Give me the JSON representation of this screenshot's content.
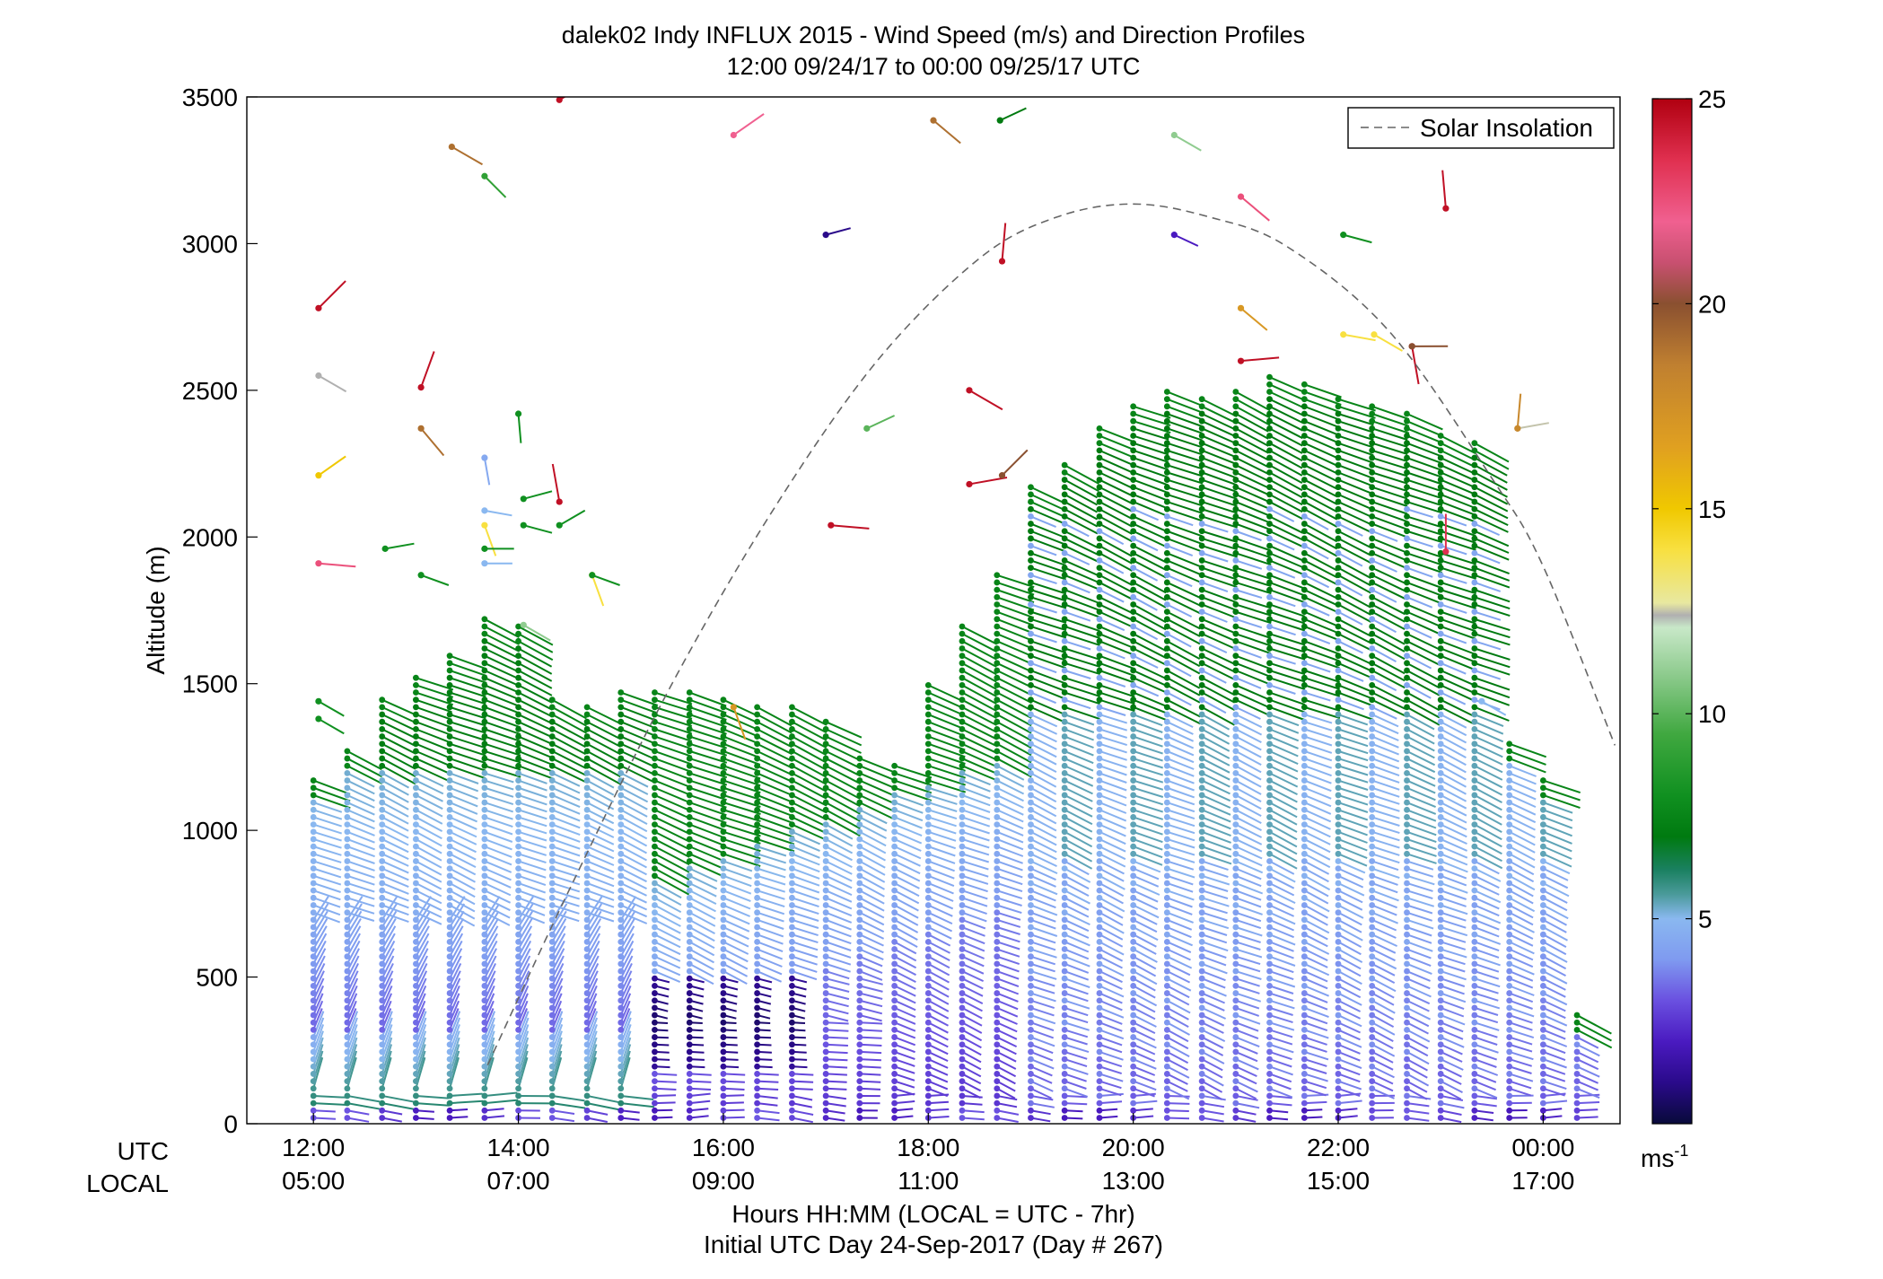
{
  "chart_data": {
    "type": "scatter",
    "title": "dalek02 Indy INFLUX 2015 - Wind Speed (m/s) and Direction Profiles",
    "subtitle": "12:00 09/24/17 to 00:00 09/25/17  UTC",
    "ylabel": "Altitude (m)",
    "xlabel": "Hours HH:MM  (LOCAL = UTC - 7hr)",
    "xlabel2": "Initial UTC Day 24-Sep-2017 (Day # 267)",
    "utc_label": "UTC",
    "local_label": "LOCAL",
    "xlim": [
      11.35,
      24.75
    ],
    "ylim": [
      0,
      3500
    ],
    "y_ticks": [
      "0",
      "500",
      "1000",
      "1500",
      "2000",
      "2500",
      "3000",
      "3500"
    ],
    "x_ticks_utc": [
      "12:00",
      "14:00",
      "16:00",
      "18:00",
      "20:00",
      "22:00",
      "00:00"
    ],
    "x_ticks_local": [
      "05:00",
      "07:00",
      "09:00",
      "11:00",
      "13:00",
      "15:00",
      "17:00"
    ],
    "x_tick_hours": [
      12,
      14,
      16,
      18,
      20,
      22,
      24
    ],
    "legend": {
      "position": "top-right",
      "entry": "Solar Insolation"
    },
    "colorbar": {
      "min": 0,
      "max": 25,
      "ticks": [
        "5",
        "10",
        "15",
        "20",
        "25"
      ],
      "unit": "ms",
      "unit_sup": "-1",
      "stops": [
        {
          "v": 0,
          "c": "#080a3a"
        },
        {
          "v": 1,
          "c": "#2a0a8a"
        },
        {
          "v": 2,
          "c": "#4a1ac0"
        },
        {
          "v": 3,
          "c": "#6a50e0"
        },
        {
          "v": 4,
          "c": "#7f9af0"
        },
        {
          "v": 5,
          "c": "#8ab8f0"
        },
        {
          "v": 5.6,
          "c": "#4a9a9a"
        },
        {
          "v": 6.2,
          "c": "#1a8060"
        },
        {
          "v": 7,
          "c": "#007a10"
        },
        {
          "v": 8,
          "c": "#109020"
        },
        {
          "v": 9.5,
          "c": "#40a840"
        },
        {
          "v": 11,
          "c": "#90cc90"
        },
        {
          "v": 12.1,
          "c": "#c8e8c8"
        },
        {
          "v": 12.4,
          "c": "#b0b0b0"
        },
        {
          "v": 12.7,
          "c": "#e8e8a0"
        },
        {
          "v": 14,
          "c": "#f8e040"
        },
        {
          "v": 15,
          "c": "#f0c800"
        },
        {
          "v": 16.5,
          "c": "#e0a020"
        },
        {
          "v": 18.5,
          "c": "#c08030"
        },
        {
          "v": 20,
          "c": "#8a5030"
        },
        {
          "v": 21,
          "c": "#c85070"
        },
        {
          "v": 22,
          "c": "#f06090"
        },
        {
          "v": 23.5,
          "c": "#e03050"
        },
        {
          "v": 25,
          "c": "#b00010"
        }
      ]
    },
    "solar_insolation": {
      "style": "dashed",
      "color": "#666666",
      "x": [
        13.7,
        14.5,
        15.5,
        16.5,
        17.5,
        18.5,
        19.25,
        20.0,
        20.75,
        21.5,
        22.5,
        23.5,
        24.0,
        24.7
      ],
      "y": [
        200,
        800,
        1500,
        2100,
        2600,
        2950,
        3090,
        3135,
        3090,
        2990,
        2700,
        2200,
        1900,
        1290
      ]
    },
    "profiles": {
      "times": [
        12.0,
        12.33,
        12.67,
        13.0,
        13.33,
        13.67,
        14.0,
        14.33,
        14.67,
        15.0,
        15.33,
        15.67,
        16.0,
        16.33,
        16.67,
        17.0,
        17.33,
        17.67,
        18.0,
        18.33,
        18.67,
        19.0,
        19.33,
        19.67,
        20.0,
        20.33,
        20.67,
        21.0,
        21.33,
        21.67,
        22.0,
        22.33,
        22.67,
        23.0,
        23.33,
        23.67,
        24.0,
        24.33
      ],
      "top_m": [
        1170,
        1270,
        1460,
        1520,
        1600,
        1720,
        1700,
        1450,
        1440,
        1480,
        1480,
        1480,
        1450,
        1440,
        1430,
        1380,
        1260,
        1240,
        1500,
        1700,
        1870,
        2170,
        2260,
        2370,
        2450,
        2500,
        2480,
        2500,
        2550,
        2520,
        2480,
        2450,
        2420,
        2350,
        2330,
        1300,
        1170,
        370
      ],
      "spacing_m": 25,
      "note_levels": "speed profile: ~5 m/s mid-levels, green aloft, purple near surface"
    },
    "upper_wind_barbs": [
      {
        "t": 12.05,
        "alt": 2780,
        "speed": 24.5,
        "dir": 225
      },
      {
        "t": 12.05,
        "alt": 2550,
        "speed": 12.4,
        "dir": 300
      },
      {
        "t": 12.05,
        "alt": 2210,
        "speed": 15,
        "dir": 235
      },
      {
        "t": 12.05,
        "alt": 1910,
        "speed": 22.5,
        "dir": 275
      },
      {
        "t": 12.05,
        "alt": 1440,
        "speed": 8,
        "dir": 300
      },
      {
        "t": 12.05,
        "alt": 1380,
        "speed": 8,
        "dir": 300
      },
      {
        "t": 12.7,
        "alt": 1960,
        "speed": 8,
        "dir": 260
      },
      {
        "t": 13.05,
        "alt": 2510,
        "speed": 24.5,
        "dir": 200
      },
      {
        "t": 13.05,
        "alt": 2370,
        "speed": 19,
        "dir": 320
      },
      {
        "t": 13.05,
        "alt": 1870,
        "speed": 8,
        "dir": 290
      },
      {
        "t": 13.35,
        "alt": 3330,
        "speed": 19,
        "dir": 300
      },
      {
        "t": 13.67,
        "alt": 3230,
        "speed": 9,
        "dir": 315
      },
      {
        "t": 13.67,
        "alt": 2270,
        "speed": 4.5,
        "dir": 350
      },
      {
        "t": 13.67,
        "alt": 2090,
        "speed": 5,
        "dir": 280
      },
      {
        "t": 13.67,
        "alt": 2040,
        "speed": 14,
        "dir": 340
      },
      {
        "t": 13.67,
        "alt": 1960,
        "speed": 8,
        "dir": 270
      },
      {
        "t": 13.67,
        "alt": 1910,
        "speed": 5,
        "dir": 270
      },
      {
        "t": 14.0,
        "alt": 2420,
        "speed": 8,
        "dir": 355
      },
      {
        "t": 14.05,
        "alt": 2130,
        "speed": 8,
        "dir": 255
      },
      {
        "t": 14.05,
        "alt": 2040,
        "speed": 8,
        "dir": 285
      },
      {
        "t": 14.05,
        "alt": 1700,
        "speed": 11,
        "dir": 300
      },
      {
        "t": 14.4,
        "alt": 2120,
        "speed": 24.5,
        "dir": 170
      },
      {
        "t": 14.4,
        "alt": 2040,
        "speed": 8,
        "dir": 240
      },
      {
        "t": 14.72,
        "alt": 1870,
        "speed": 14,
        "dir": 340
      },
      {
        "t": 14.72,
        "alt": 1870,
        "speed": 8,
        "dir": 290
      },
      {
        "t": 14.4,
        "alt": 3490,
        "speed": 24.5,
        "dir": 240
      },
      {
        "t": 16.1,
        "alt": 3370,
        "speed": 22,
        "dir": 235
      },
      {
        "t": 16.1,
        "alt": 1420,
        "speed": 17,
        "dir": 340
      },
      {
        "t": 17.0,
        "alt": 3030,
        "speed": 1,
        "dir": 255
      },
      {
        "t": 17.05,
        "alt": 2040,
        "speed": 24.5,
        "dir": 275
      },
      {
        "t": 17.4,
        "alt": 2370,
        "speed": 10,
        "dir": 245
      },
      {
        "t": 18.05,
        "alt": 3420,
        "speed": 19,
        "dir": 310
      },
      {
        "t": 18.7,
        "alt": 3420,
        "speed": 7,
        "dir": 245
      },
      {
        "t": 18.4,
        "alt": 2500,
        "speed": 24.5,
        "dir": 300
      },
      {
        "t": 18.4,
        "alt": 2180,
        "speed": 24.5,
        "dir": 260
      },
      {
        "t": 18.72,
        "alt": 2210,
        "speed": 20,
        "dir": 225
      },
      {
        "t": 18.72,
        "alt": 2940,
        "speed": 24.5,
        "dir": 185
      },
      {
        "t": 20.4,
        "alt": 3370,
        "speed": 11,
        "dir": 300
      },
      {
        "t": 20.4,
        "alt": 3030,
        "speed": 2,
        "dir": 295
      },
      {
        "t": 21.05,
        "alt": 2780,
        "speed": 17,
        "dir": 310
      },
      {
        "t": 21.05,
        "alt": 3160,
        "speed": 22.5,
        "dir": 310
      },
      {
        "t": 21.05,
        "alt": 2600,
        "speed": 24.5,
        "dir": 265
      },
      {
        "t": 22.05,
        "alt": 3030,
        "speed": 8,
        "dir": 285
      },
      {
        "t": 22.05,
        "alt": 2690,
        "speed": 14,
        "dir": 280
      },
      {
        "t": 22.35,
        "alt": 2690,
        "speed": 14,
        "dir": 300
      },
      {
        "t": 22.72,
        "alt": 2650,
        "speed": 24.5,
        "dir": 350
      },
      {
        "t": 22.72,
        "alt": 2650,
        "speed": 20,
        "dir": 270
      },
      {
        "t": 23.05,
        "alt": 3120,
        "speed": 24.5,
        "dir": 175
      },
      {
        "t": 23.05,
        "alt": 1950,
        "speed": 23.5,
        "dir": 180
      },
      {
        "t": 23.75,
        "alt": 2370,
        "speed": 12.5,
        "dir": 260
      },
      {
        "t": 23.75,
        "alt": 2370,
        "speed": 18,
        "dir": 185
      },
      {
        "t": 23.4,
        "alt": 1440,
        "speed": 5,
        "dir": 300
      }
    ]
  }
}
